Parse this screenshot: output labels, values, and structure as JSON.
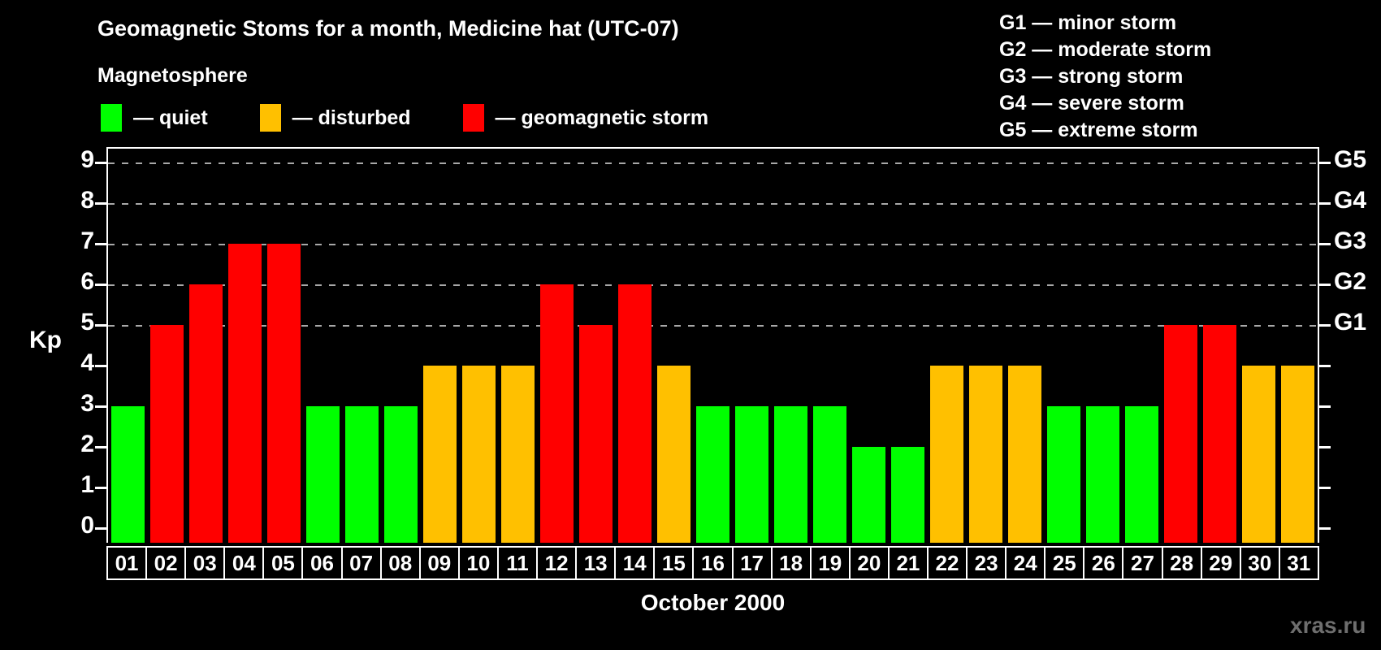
{
  "header": {
    "title": "Geomagnetic Stoms for a month, Medicine hat (UTC-07)"
  },
  "legend": {
    "title": "Magnetosphere",
    "items": [
      {
        "name": "quiet",
        "label": "— quiet",
        "color": "#00ff00"
      },
      {
        "name": "disturbed",
        "label": "— disturbed",
        "color": "#ffc000"
      },
      {
        "name": "storm",
        "label": "— geomagnetic storm",
        "color": "#ff0000"
      }
    ]
  },
  "storm_scale": [
    {
      "label": "G1 — minor storm"
    },
    {
      "label": "G2 — moderate storm"
    },
    {
      "label": "G3 — strong storm"
    },
    {
      "label": "G4 — severe storm"
    },
    {
      "label": "G5 — extreme storm"
    }
  ],
  "chart_data": {
    "type": "bar",
    "title": "Geomagnetic Stoms for a month, Medicine hat (UTC-07)",
    "xlabel": "October 2000",
    "ylabel": "Kp",
    "ylim": [
      0,
      9
    ],
    "y_ticks": [
      0,
      1,
      2,
      3,
      4,
      5,
      6,
      7,
      8,
      9
    ],
    "gridlines": [
      5,
      6,
      7,
      8,
      9
    ],
    "grid_style": "dashed",
    "legend_position": "top-left",
    "right_axis_labels": [
      {
        "label": "G1",
        "value": 5
      },
      {
        "label": "G2",
        "value": 6
      },
      {
        "label": "G3",
        "value": 7
      },
      {
        "label": "G4",
        "value": 8
      },
      {
        "label": "G5",
        "value": 9
      }
    ],
    "categories": [
      "01",
      "02",
      "03",
      "04",
      "05",
      "06",
      "07",
      "08",
      "09",
      "10",
      "11",
      "12",
      "13",
      "14",
      "15",
      "16",
      "17",
      "18",
      "19",
      "20",
      "21",
      "22",
      "23",
      "24",
      "25",
      "26",
      "27",
      "28",
      "29",
      "30",
      "31"
    ],
    "values": [
      3,
      5,
      6,
      7,
      7,
      3,
      3,
      3,
      4,
      4,
      4,
      6,
      5,
      6,
      4,
      3,
      3,
      3,
      3,
      2,
      2,
      4,
      4,
      4,
      3,
      3,
      3,
      5,
      5,
      4,
      4
    ],
    "states": [
      "quiet",
      "storm",
      "storm",
      "storm",
      "storm",
      "quiet",
      "quiet",
      "quiet",
      "disturbed",
      "disturbed",
      "disturbed",
      "storm",
      "storm",
      "storm",
      "disturbed",
      "quiet",
      "quiet",
      "quiet",
      "quiet",
      "quiet",
      "quiet",
      "disturbed",
      "disturbed",
      "disturbed",
      "quiet",
      "quiet",
      "quiet",
      "storm",
      "storm",
      "disturbed",
      "disturbed"
    ],
    "colors": {
      "quiet": "#00ff00",
      "disturbed": "#ffc000",
      "storm": "#ff0000"
    }
  },
  "watermark": "xras.ru"
}
